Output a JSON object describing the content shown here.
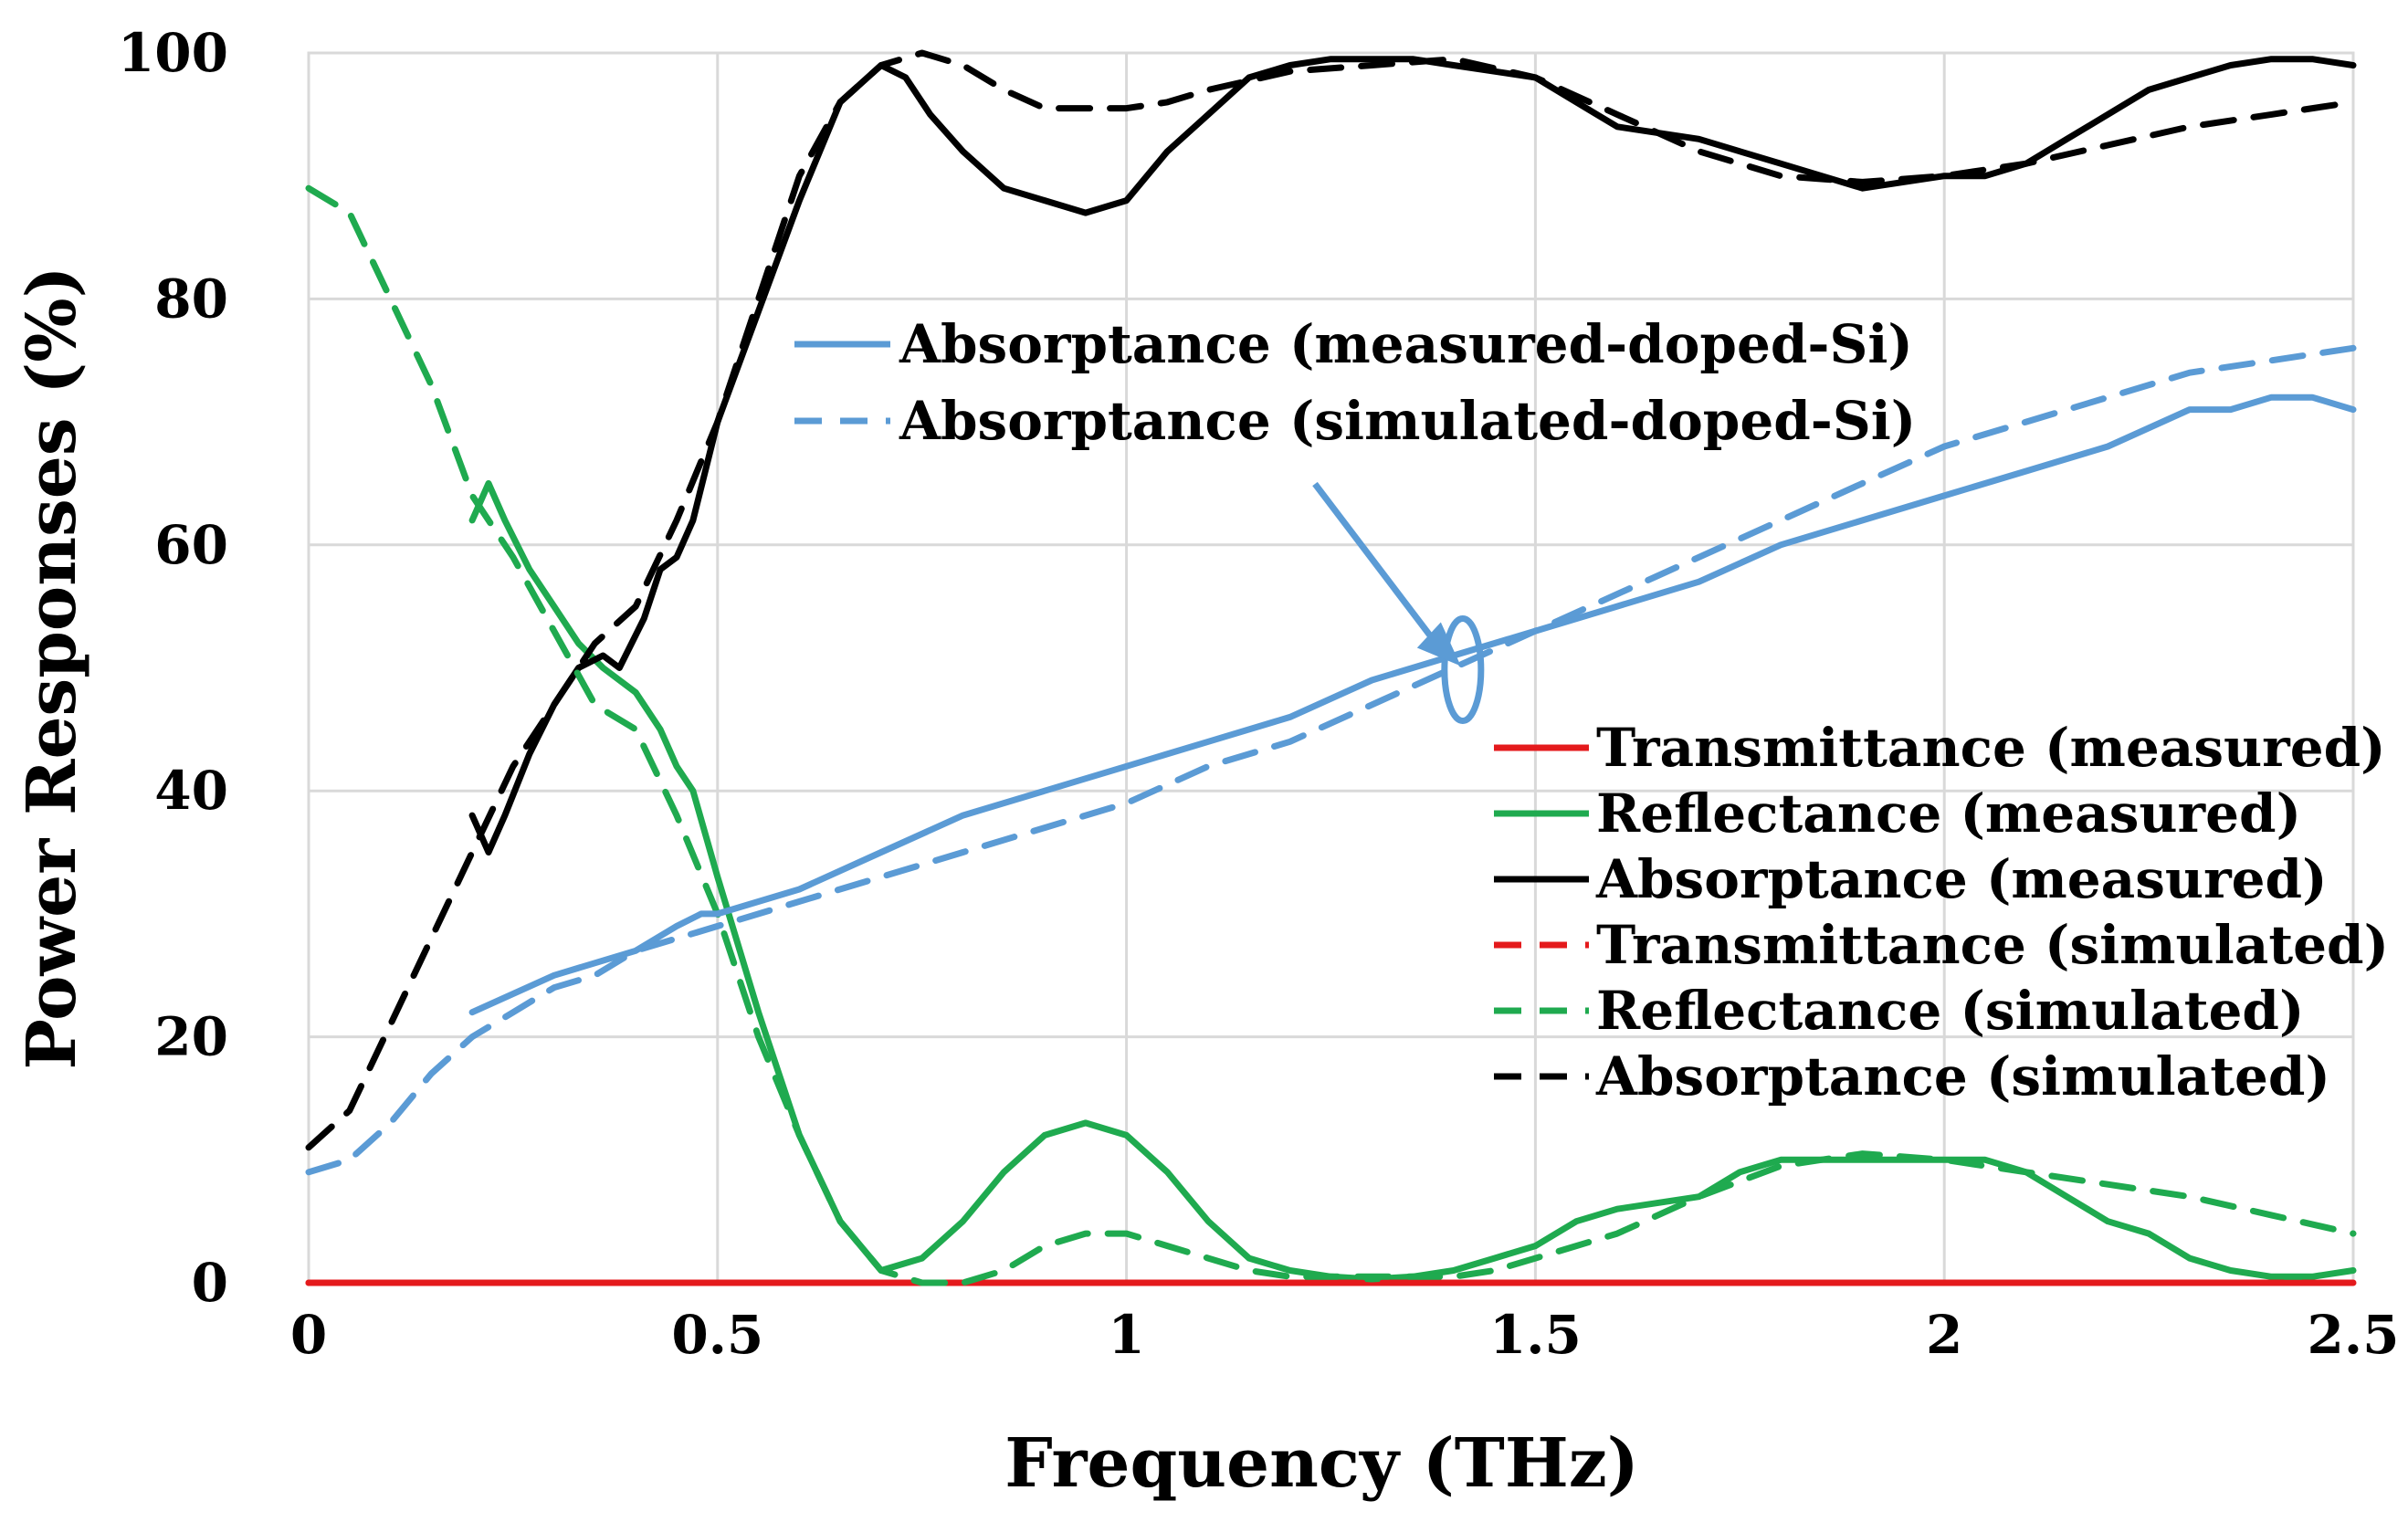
{
  "chart_data": {
    "type": "line",
    "title": "",
    "xlabel": "Frequency (THz)",
    "ylabel": "Power Responses (%)",
    "xlim": [
      0,
      2.5
    ],
    "ylim": [
      0,
      100
    ],
    "x_ticks": [
      "0",
      "0.5",
      "1",
      "1.5",
      "2",
      "2.5"
    ],
    "y_ticks": [
      "0",
      "20",
      "40",
      "60",
      "80",
      "100"
    ],
    "grid": true,
    "legend_lower": [
      "Transmittance (measured)",
      "Reflectance (measured)",
      "Absorptance (measured)",
      "Transmittance (simulated)",
      "Reflectance (simulated)",
      "Absorptance (simulated)"
    ],
    "legend_upper": [
      "Absorptance (measured-doped-Si)",
      "Absorptance (simulated-doped-Si)"
    ],
    "annotation": {
      "text": "",
      "points_to_x": 1.4,
      "points_to_y": 50
    },
    "series": [
      {
        "name": "Transmittance (measured)",
        "color": "#e41a1c",
        "dashed": false,
        "x": [
          0,
          2.5
        ],
        "y": [
          0,
          0
        ]
      },
      {
        "name": "Reflectance (measured)",
        "color": "#1faa4f",
        "dashed": false,
        "x": [
          0.2,
          0.22,
          0.24,
          0.27,
          0.3,
          0.33,
          0.36,
          0.4,
          0.43,
          0.45,
          0.47,
          0.5,
          0.55,
          0.6,
          0.65,
          0.7,
          0.75,
          0.8,
          0.85,
          0.9,
          0.95,
          1.0,
          1.05,
          1.1,
          1.15,
          1.2,
          1.25,
          1.3,
          1.35,
          1.4,
          1.45,
          1.5,
          1.55,
          1.6,
          1.7,
          1.75,
          1.8,
          1.85,
          1.9,
          1.95,
          2.0,
          2.05,
          2.1,
          2.15,
          2.2,
          2.25,
          2.3,
          2.35,
          2.4,
          2.45,
          2.5
        ],
        "y": [
          62,
          65,
          62,
          58,
          55,
          52,
          50,
          48,
          45,
          42,
          40,
          33,
          22,
          12,
          5,
          1,
          2,
          5,
          9,
          12,
          13,
          12,
          9,
          5,
          2,
          1,
          0.5,
          0.3,
          0.5,
          1,
          2,
          3,
          5,
          6,
          7,
          9,
          10,
          10,
          10,
          10,
          10,
          10,
          9,
          7,
          5,
          4,
          2,
          1,
          0.5,
          0.5,
          1
        ]
      },
      {
        "name": "Absorptance (measured)",
        "color": "#000000",
        "dashed": false,
        "x": [
          0.2,
          0.22,
          0.24,
          0.27,
          0.3,
          0.33,
          0.36,
          0.38,
          0.41,
          0.43,
          0.45,
          0.47,
          0.5,
          0.55,
          0.6,
          0.65,
          0.7,
          0.73,
          0.76,
          0.8,
          0.85,
          0.9,
          0.95,
          1.0,
          1.05,
          1.1,
          1.15,
          1.2,
          1.25,
          1.3,
          1.35,
          1.4,
          1.45,
          1.5,
          1.55,
          1.6,
          1.7,
          1.75,
          1.8,
          1.85,
          1.9,
          1.95,
          2.0,
          2.05,
          2.1,
          2.15,
          2.2,
          2.25,
          2.3,
          2.35,
          2.4,
          2.45,
          2.5
        ],
        "y": [
          38,
          35,
          38,
          43,
          47,
          50,
          51,
          50,
          54,
          58,
          59,
          62,
          70,
          79,
          88,
          96,
          99,
          98,
          95,
          92,
          89,
          88,
          87,
          88,
          92,
          95,
          98,
          99,
          99.5,
          99.5,
          99.5,
          99,
          98.5,
          98,
          96,
          94,
          93,
          92,
          91,
          90,
          89,
          89.5,
          90,
          90,
          91,
          93,
          95,
          97,
          98,
          99,
          99.5,
          99.5,
          99
        ]
      },
      {
        "name": "Transmittance (simulated)",
        "color": "#e41a1c",
        "dashed": true,
        "x": [
          0,
          2.5
        ],
        "y": [
          0,
          0
        ]
      },
      {
        "name": "Reflectance (simulated)",
        "color": "#1faa4f",
        "dashed": true,
        "x": [
          0,
          0.05,
          0.1,
          0.15,
          0.2,
          0.25,
          0.3,
          0.35,
          0.4,
          0.45,
          0.5,
          0.55,
          0.6,
          0.65,
          0.7,
          0.75,
          0.8,
          0.85,
          0.9,
          0.95,
          1.0,
          1.05,
          1.1,
          1.15,
          1.2,
          1.25,
          1.3,
          1.35,
          1.4,
          1.45,
          1.5,
          1.55,
          1.6,
          1.7,
          1.8,
          1.9,
          2.0,
          2.1,
          2.2,
          2.3,
          2.4,
          2.5
        ],
        "y": [
          89,
          87,
          80,
          73,
          64,
          59,
          53,
          47,
          45,
          38,
          30,
          20,
          12,
          5,
          1,
          0,
          0,
          1,
          3,
          4,
          4,
          3,
          2,
          1,
          0.5,
          0.5,
          0.5,
          0.5,
          0.5,
          1,
          2,
          3,
          4,
          7,
          9.5,
          10.5,
          10,
          9,
          8,
          7,
          5.5,
          4
        ]
      },
      {
        "name": "Absorptance (simulated)",
        "color": "#000000",
        "dashed": true,
        "x": [
          0,
          0.05,
          0.1,
          0.15,
          0.2,
          0.25,
          0.3,
          0.35,
          0.4,
          0.45,
          0.5,
          0.55,
          0.6,
          0.65,
          0.7,
          0.75,
          0.8,
          0.85,
          0.9,
          0.95,
          1.0,
          1.05,
          1.1,
          1.2,
          1.3,
          1.4,
          1.5,
          1.6,
          1.7,
          1.8,
          1.9,
          2.0,
          2.1,
          2.2,
          2.3,
          2.4,
          2.5
        ],
        "y": [
          11,
          14,
          21,
          28,
          35,
          42,
          47,
          52,
          55,
          62,
          70,
          80,
          90,
          96,
          99,
          100,
          99,
          97,
          95.5,
          95.5,
          95.5,
          96,
          97,
          98.5,
          99,
          99.5,
          98,
          95,
          92,
          90,
          89.5,
          90,
          91,
          92.5,
          94,
          95,
          96
        ]
      },
      {
        "name": "Absorptance (measured-doped-Si)",
        "color": "#5b9bd5",
        "dashed": false,
        "x": [
          0.2,
          0.3,
          0.4,
          0.45,
          0.48,
          0.5,
          0.6,
          0.7,
          0.8,
          0.9,
          1.0,
          1.1,
          1.2,
          1.3,
          1.4,
          1.5,
          1.6,
          1.7,
          1.8,
          1.9,
          2.0,
          2.1,
          2.2,
          2.3,
          2.35,
          2.4,
          2.45,
          2.5
        ],
        "y": [
          22,
          25,
          27,
          29,
          30,
          30,
          32,
          35,
          38,
          40,
          42,
          44,
          46,
          49,
          51,
          53,
          55,
          57,
          60,
          62,
          64,
          66,
          68,
          71,
          71,
          72,
          72,
          71
        ]
      },
      {
        "name": "Absorptance (simulated-doped-Si)",
        "color": "#5b9bd5",
        "dashed": true,
        "x": [
          0,
          0.05,
          0.1,
          0.15,
          0.2,
          0.25,
          0.3,
          0.35,
          0.4,
          0.5,
          0.6,
          0.7,
          0.8,
          0.9,
          1.0,
          1.1,
          1.2,
          1.3,
          1.4,
          1.5,
          1.6,
          1.7,
          1.8,
          1.9,
          2.0,
          2.1,
          2.2,
          2.3,
          2.4,
          2.5
        ],
        "y": [
          9,
          10,
          13,
          17,
          20,
          22,
          24,
          25,
          27,
          29,
          31,
          33,
          35,
          37,
          39,
          42,
          44,
          47,
          50,
          53,
          56,
          59,
          62,
          65,
          68,
          70,
          72,
          74,
          75,
          76
        ]
      }
    ]
  }
}
